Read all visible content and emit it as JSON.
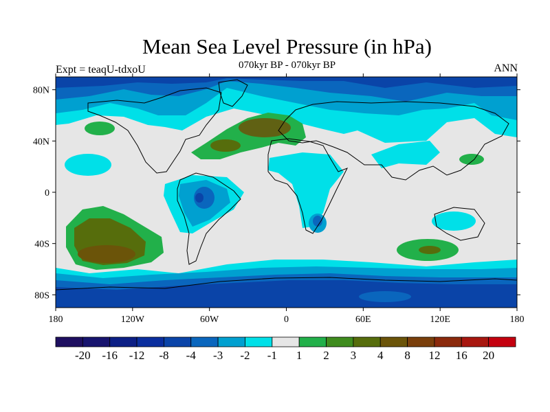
{
  "title": "Mean Sea Level Pressure (in hPa)",
  "subtitle": "070kyr BP - 070kyr BP",
  "left_label": "Expt = teaqU-tdxoU",
  "right_label": "ANN",
  "map": {
    "projection": "cylindrical-equidistant",
    "lon_range": [
      -180,
      180
    ],
    "lat_range": [
      -90,
      90
    ],
    "lat_ticks": [
      {
        "lat": 80,
        "label": "80N"
      },
      {
        "lat": 40,
        "label": "40N"
      },
      {
        "lat": 0,
        "label": "0"
      },
      {
        "lat": -40,
        "label": "40S"
      },
      {
        "lat": -80,
        "label": "80S"
      }
    ],
    "lon_ticks": [
      {
        "lon": -180,
        "label": "180"
      },
      {
        "lon": -120,
        "label": "120W"
      },
      {
        "lon": -60,
        "label": "60W"
      },
      {
        "lon": 0,
        "label": "0"
      },
      {
        "lon": 60,
        "label": "60E"
      },
      {
        "lon": 120,
        "label": "120E"
      },
      {
        "lon": 180,
        "label": "180"
      }
    ],
    "background_color": "#e6e6e6",
    "coastline_color": "#000000"
  },
  "colorbar": {
    "colors": [
      "#1e0f60",
      "#17146e",
      "#0c1f85",
      "#0a2e9e",
      "#0a44a8",
      "#0a66bd",
      "#00a0d0",
      "#00e0e8",
      "#e6e6e6",
      "#22b04a",
      "#3f8c1e",
      "#566d0c",
      "#6b5409",
      "#7a3f0b",
      "#8b2a0c",
      "#a8170f",
      "#c4000f"
    ],
    "labels": [
      "-20",
      "-16",
      "-12",
      "-8",
      "-4",
      "-3",
      "-2",
      "-1",
      "1",
      "2",
      "3",
      "4",
      "8",
      "12",
      "16",
      "20"
    ]
  }
}
